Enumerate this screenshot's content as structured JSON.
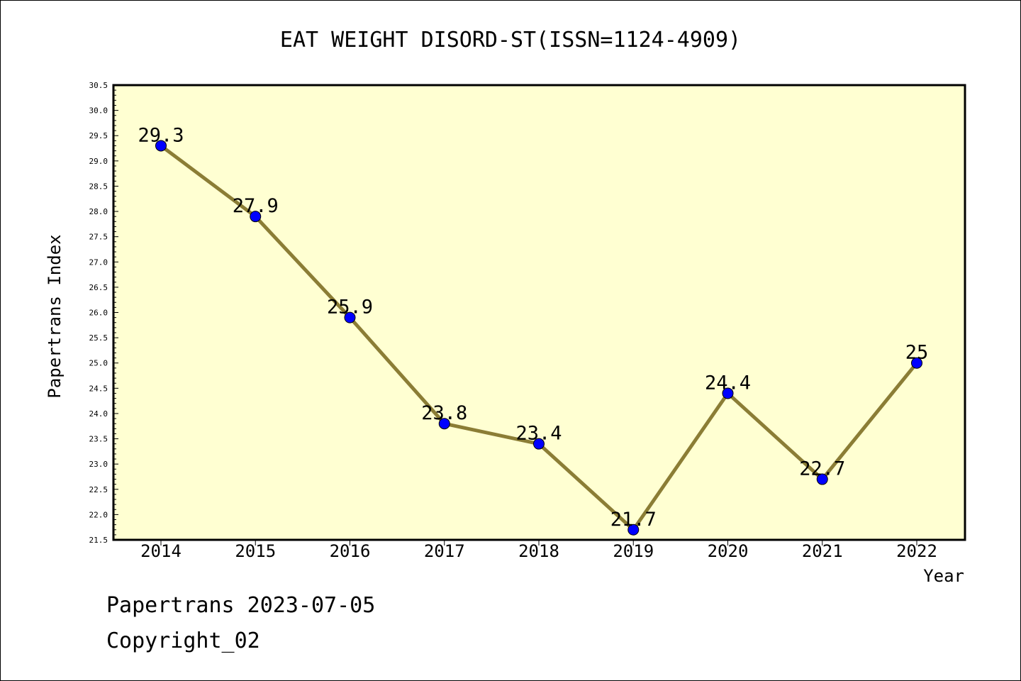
{
  "chart_data": {
    "type": "line",
    "title": "EAT WEIGHT DISORD-ST(ISSN=1124-4909)",
    "xlabel": "Year",
    "ylabel": "Papertrans Index",
    "categories": [
      "2014",
      "2015",
      "2016",
      "2017",
      "2018",
      "2019",
      "2020",
      "2021",
      "2022"
    ],
    "series": [
      {
        "values": [
          29.3,
          27.9,
          25.9,
          23.8,
          23.4,
          21.7,
          24.4,
          22.7,
          25
        ],
        "labels": [
          "29.3",
          "27.9",
          "25.9",
          "23.8",
          "23.4",
          "21.7",
          "24.4",
          "22.7",
          "25"
        ]
      }
    ],
    "ylim": [
      21.5,
      30.5
    ],
    "yticks": [
      "21.5",
      "22.0",
      "22.5",
      "23.0",
      "23.5",
      "24.0",
      "24.5",
      "25.0",
      "25.5",
      "26.0",
      "26.5",
      "27.0",
      "27.5",
      "28.0",
      "28.5",
      "29.0",
      "29.5",
      "30.0",
      "30.5"
    ],
    "grid": false,
    "legend": "none",
    "colors": {
      "plot_background": "#ffffd2",
      "line": "#8b7d35",
      "marker": "#0000ff",
      "axis": "#000000"
    }
  },
  "footer": {
    "line1": "Papertrans 2023-07-05",
    "line2": "Copyright_02"
  }
}
